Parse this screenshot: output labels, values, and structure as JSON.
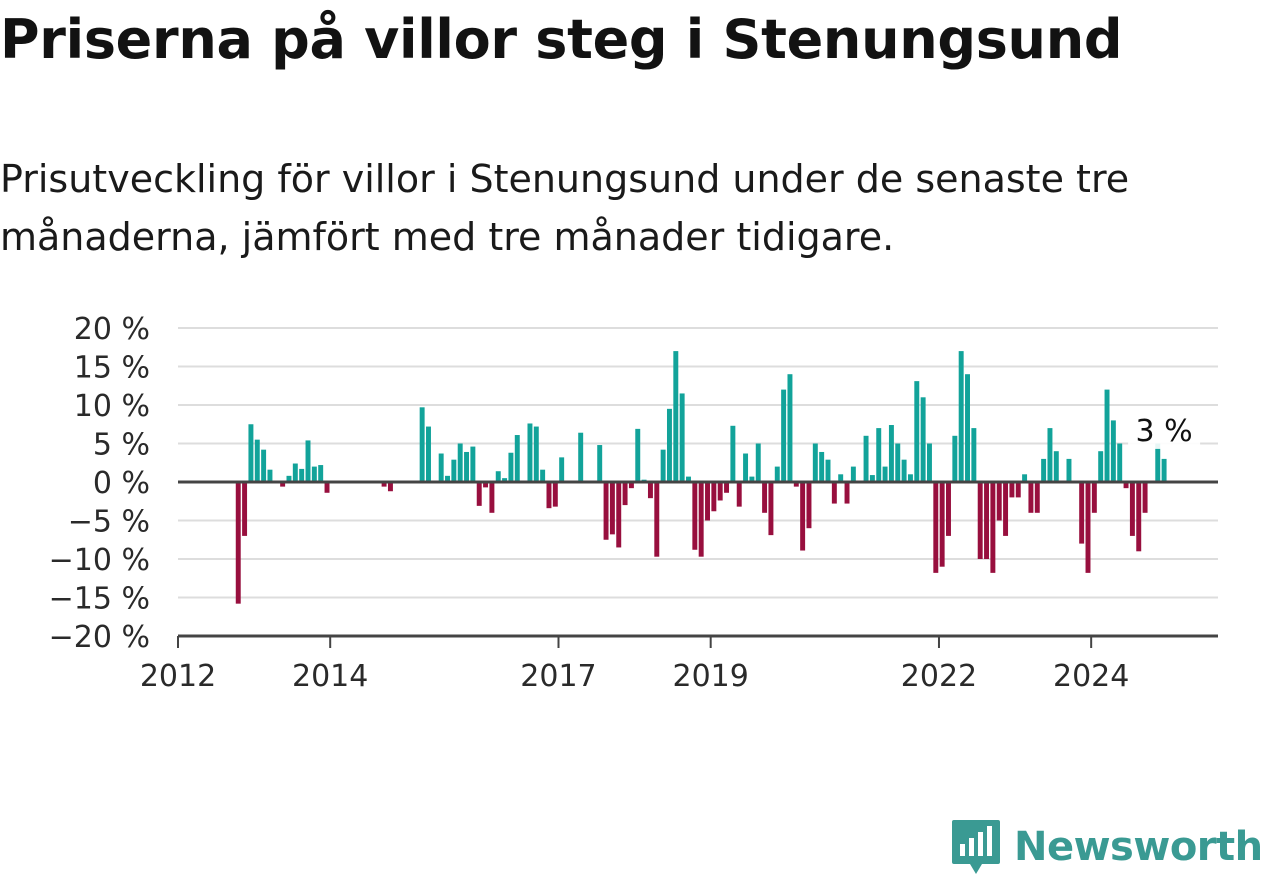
{
  "title": "Priserna på villor steg i Stenungsund",
  "subtitle": "Prisutveckling för villor i Stenungsund under de senaste tre månaderna, jämfört med tre månader tidigare.",
  "brand": {
    "name": "Newsworthy",
    "color": "#3a9a93",
    "icon": "newsworthy-chart-icon"
  },
  "colors": {
    "positive": "#12a39a",
    "negative": "#980f3e",
    "grid": "#dddddd",
    "axis": "#444444"
  },
  "chart_data": {
    "type": "bar",
    "x_ticks": [
      "2012",
      "2014",
      "2017",
      "2019",
      "2022",
      "2024"
    ],
    "y_ticks": [
      "−20 %",
      "−15 %",
      "−10 %",
      "−5 %",
      "0 %",
      "5 %",
      "10 %",
      "15 %",
      "20 %"
    ],
    "ylim": [
      -20,
      20
    ],
    "unit": "%",
    "annotation": {
      "label": "3 %",
      "value": 3
    },
    "start": "2012-01",
    "end": "2025-09",
    "bars": [
      {
        "x": "2012-10",
        "value": -15.8
      },
      {
        "x": "2012-11",
        "value": -7
      },
      {
        "x": "2012-12",
        "value": 7.5
      },
      {
        "x": "2013-01",
        "value": 5.5
      },
      {
        "x": "2013-02",
        "value": 4.2
      },
      {
        "x": "2013-03",
        "value": 1.6
      },
      {
        "x": "2013-05",
        "value": -0.6
      },
      {
        "x": "2013-06",
        "value": 0.8
      },
      {
        "x": "2013-07",
        "value": 2.4
      },
      {
        "x": "2013-08",
        "value": 1.7
      },
      {
        "x": "2013-09",
        "value": 5.4
      },
      {
        "x": "2013-10",
        "value": 2
      },
      {
        "x": "2013-11",
        "value": 2.2
      },
      {
        "x": "2013-12",
        "value": -1.4
      },
      {
        "x": "2014-09",
        "value": -0.6
      },
      {
        "x": "2014-10",
        "value": -1.2
      },
      {
        "x": "2015-03",
        "value": 9.7
      },
      {
        "x": "2015-04",
        "value": 7.2
      },
      {
        "x": "2015-06",
        "value": 3.7
      },
      {
        "x": "2015-07",
        "value": 0.8
      },
      {
        "x": "2015-08",
        "value": 2.9
      },
      {
        "x": "2015-09",
        "value": 5
      },
      {
        "x": "2015-10",
        "value": 3.9
      },
      {
        "x": "2015-11",
        "value": 4.6
      },
      {
        "x": "2015-12",
        "value": -3.1
      },
      {
        "x": "2016-01",
        "value": -0.7
      },
      {
        "x": "2016-02",
        "value": -4
      },
      {
        "x": "2016-03",
        "value": 1.4
      },
      {
        "x": "2016-04",
        "value": 0.5
      },
      {
        "x": "2016-05",
        "value": 3.8
      },
      {
        "x": "2016-06",
        "value": 6.1
      },
      {
        "x": "2016-08",
        "value": 7.6
      },
      {
        "x": "2016-09",
        "value": 7.2
      },
      {
        "x": "2016-10",
        "value": 1.6
      },
      {
        "x": "2016-11",
        "value": -3.4
      },
      {
        "x": "2016-12",
        "value": -3.2
      },
      {
        "x": "2017-01",
        "value": 3.2
      },
      {
        "x": "2017-04",
        "value": 6.4
      },
      {
        "x": "2017-07",
        "value": 4.8
      },
      {
        "x": "2017-08",
        "value": -7.5
      },
      {
        "x": "2017-09",
        "value": -6.8
      },
      {
        "x": "2017-10",
        "value": -8.5
      },
      {
        "x": "2017-11",
        "value": -3
      },
      {
        "x": "2017-12",
        "value": -0.8
      },
      {
        "x": "2018-01",
        "value": 6.9
      },
      {
        "x": "2018-02",
        "value": 0.3
      },
      {
        "x": "2018-03",
        "value": -2.1
      },
      {
        "x": "2018-04",
        "value": -9.7
      },
      {
        "x": "2018-05",
        "value": 4.2
      },
      {
        "x": "2018-06",
        "value": 9.5
      },
      {
        "x": "2018-07",
        "value": 17
      },
      {
        "x": "2018-08",
        "value": 11.5
      },
      {
        "x": "2018-09",
        "value": 0.7
      },
      {
        "x": "2018-10",
        "value": -8.8
      },
      {
        "x": "2018-11",
        "value": -9.7
      },
      {
        "x": "2018-12",
        "value": -5
      },
      {
        "x": "2019-01",
        "value": -3.8
      },
      {
        "x": "2019-02",
        "value": -2.4
      },
      {
        "x": "2019-03",
        "value": -1.4
      },
      {
        "x": "2019-04",
        "value": 7.3
      },
      {
        "x": "2019-05",
        "value": -3.2
      },
      {
        "x": "2019-06",
        "value": 3.7
      },
      {
        "x": "2019-07",
        "value": 0.7
      },
      {
        "x": "2019-08",
        "value": 5
      },
      {
        "x": "2019-09",
        "value": -4
      },
      {
        "x": "2019-10",
        "value": -6.9
      },
      {
        "x": "2019-11",
        "value": 2
      },
      {
        "x": "2019-12",
        "value": 12
      },
      {
        "x": "2020-01",
        "value": 14
      },
      {
        "x": "2020-02",
        "value": -0.6
      },
      {
        "x": "2020-03",
        "value": -8.9
      },
      {
        "x": "2020-04",
        "value": -6
      },
      {
        "x": "2020-05",
        "value": 5
      },
      {
        "x": "2020-06",
        "value": 3.9
      },
      {
        "x": "2020-07",
        "value": 2.9
      },
      {
        "x": "2020-08",
        "value": -2.8
      },
      {
        "x": "2020-09",
        "value": 1
      },
      {
        "x": "2020-10",
        "value": -2.8
      },
      {
        "x": "2020-11",
        "value": 2
      },
      {
        "x": "2021-01",
        "value": 6
      },
      {
        "x": "2021-02",
        "value": 0.9
      },
      {
        "x": "2021-03",
        "value": 7
      },
      {
        "x": "2021-04",
        "value": 2
      },
      {
        "x": "2021-05",
        "value": 7.4
      },
      {
        "x": "2021-06",
        "value": 5
      },
      {
        "x": "2021-07",
        "value": 2.9
      },
      {
        "x": "2021-08",
        "value": 1
      },
      {
        "x": "2021-09",
        "value": 13.1
      },
      {
        "x": "2021-10",
        "value": 11
      },
      {
        "x": "2021-11",
        "value": 5
      },
      {
        "x": "2021-12",
        "value": -11.8
      },
      {
        "x": "2022-01",
        "value": -11
      },
      {
        "x": "2022-02",
        "value": -7
      },
      {
        "x": "2022-03",
        "value": 6
      },
      {
        "x": "2022-04",
        "value": 17
      },
      {
        "x": "2022-05",
        "value": 14
      },
      {
        "x": "2022-06",
        "value": 7
      },
      {
        "x": "2022-07",
        "value": -10
      },
      {
        "x": "2022-08",
        "value": -10
      },
      {
        "x": "2022-09",
        "value": -11.8
      },
      {
        "x": "2022-10",
        "value": -5
      },
      {
        "x": "2022-11",
        "value": -7
      },
      {
        "x": "2022-12",
        "value": -2
      },
      {
        "x": "2023-01",
        "value": -2
      },
      {
        "x": "2023-02",
        "value": 1
      },
      {
        "x": "2023-03",
        "value": -4
      },
      {
        "x": "2023-04",
        "value": -4
      },
      {
        "x": "2023-05",
        "value": 3
      },
      {
        "x": "2023-06",
        "value": 7
      },
      {
        "x": "2023-07",
        "value": 4
      },
      {
        "x": "2023-09",
        "value": 3
      },
      {
        "x": "2023-11",
        "value": -8
      },
      {
        "x": "2023-12",
        "value": -11.8
      },
      {
        "x": "2024-01",
        "value": -4
      },
      {
        "x": "2024-02",
        "value": 4
      },
      {
        "x": "2024-03",
        "value": 12
      },
      {
        "x": "2024-04",
        "value": 8
      },
      {
        "x": "2024-05",
        "value": 5
      },
      {
        "x": "2024-06",
        "value": -0.8
      },
      {
        "x": "2024-07",
        "value": -7
      },
      {
        "x": "2024-08",
        "value": -9
      },
      {
        "x": "2024-09",
        "value": -4
      },
      {
        "x": "2024-11",
        "value": 5
      },
      {
        "x": "2024-12",
        "value": 3
      }
    ]
  }
}
